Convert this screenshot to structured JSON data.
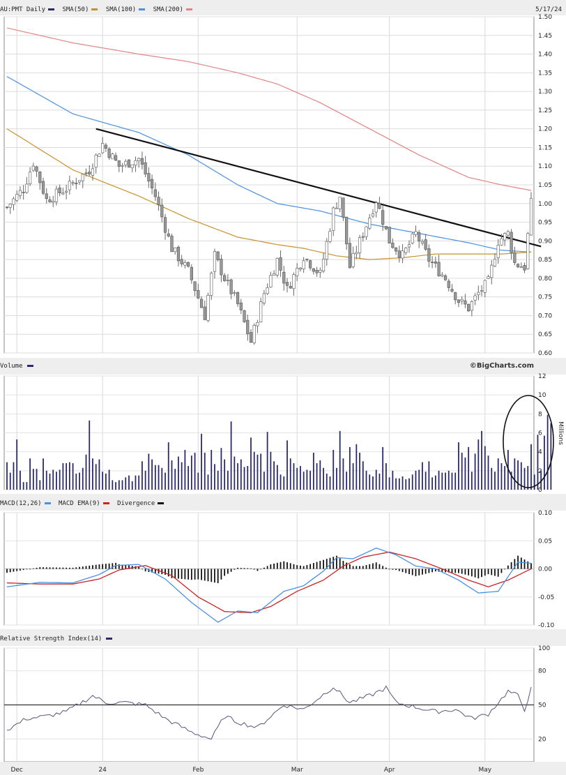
{
  "headers": {
    "price": {
      "symbol": "AU:PMT Daily",
      "date": "5/17/24",
      "items": [
        {
          "label": "SMA(50)",
          "color": "#c8902a"
        },
        {
          "label": "SMA(100)",
          "color": "#4a90e2"
        },
        {
          "label": "SMA(200)",
          "color": "#e08585"
        }
      ],
      "symbol_color": "#2a2a6a"
    },
    "volume": {
      "label": "Volume",
      "color": "#2a2a6a"
    },
    "macd": {
      "items": [
        {
          "label": "MACD(12,26)",
          "color": "#4a90e2"
        },
        {
          "label": "MACD EMA(9)",
          "color": "#cc2222"
        },
        {
          "label": "Divergence",
          "color": "#111111"
        }
      ]
    },
    "rsi": {
      "label": "Relative Strength Index(14)",
      "color": "#2a2a6a"
    }
  },
  "brand": "©BigCharts.com",
  "chart_data": [
    {
      "type": "candlestick",
      "x_labels": [
        "Dec",
        "24",
        "Feb",
        "Mar",
        "Apr",
        "May"
      ],
      "x_label_days": [
        3,
        29,
        58,
        88,
        116,
        145
      ],
      "ylim": [
        0.6,
        1.5
      ],
      "yticks": [
        "0.60",
        "0.65",
        "0.70",
        "0.75",
        "0.80",
        "0.85",
        "0.90",
        "0.95",
        "1.00",
        "1.05",
        "1.10",
        "1.15",
        "1.20",
        "1.25",
        "1.30",
        "1.35",
        "1.40",
        "1.45",
        "1.50"
      ],
      "anchors_close": [
        [
          0,
          0.99
        ],
        [
          5,
          1.04
        ],
        [
          8,
          1.11
        ],
        [
          12,
          1.01
        ],
        [
          18,
          1.04
        ],
        [
          25,
          1.09
        ],
        [
          29,
          1.16
        ],
        [
          34,
          1.1
        ],
        [
          40,
          1.12
        ],
        [
          45,
          1.02
        ],
        [
          50,
          0.88
        ],
        [
          55,
          0.82
        ],
        [
          60,
          0.7
        ],
        [
          63,
          0.86
        ],
        [
          66,
          0.8
        ],
        [
          70,
          0.73
        ],
        [
          74,
          0.63
        ],
        [
          78,
          0.76
        ],
        [
          82,
          0.85
        ],
        [
          85,
          0.77
        ],
        [
          90,
          0.86
        ],
        [
          95,
          0.81
        ],
        [
          99,
          0.98
        ],
        [
          101,
          1.02
        ],
        [
          104,
          0.83
        ],
        [
          108,
          0.92
        ],
        [
          112,
          1.01
        ],
        [
          116,
          0.9
        ],
        [
          120,
          0.86
        ],
        [
          124,
          0.92
        ],
        [
          128,
          0.85
        ],
        [
          133,
          0.8
        ],
        [
          137,
          0.74
        ],
        [
          140,
          0.72
        ],
        [
          143,
          0.76
        ],
        [
          146,
          0.79
        ],
        [
          149,
          0.9
        ],
        [
          152,
          0.92
        ],
        [
          154,
          0.84
        ],
        [
          157,
          0.83
        ],
        [
          159,
          1.0
        ]
      ],
      "sma_50": [
        [
          0,
          1.2
        ],
        [
          20,
          1.09
        ],
        [
          40,
          1.02
        ],
        [
          55,
          0.96
        ],
        [
          70,
          0.91
        ],
        [
          82,
          0.89
        ],
        [
          90,
          0.88
        ],
        [
          100,
          0.86
        ],
        [
          110,
          0.85
        ],
        [
          120,
          0.855
        ],
        [
          130,
          0.865
        ],
        [
          140,
          0.865
        ],
        [
          150,
          0.865
        ],
        [
          159,
          0.87
        ]
      ],
      "sma_100": [
        [
          0,
          1.34
        ],
        [
          20,
          1.24
        ],
        [
          40,
          1.19
        ],
        [
          55,
          1.13
        ],
        [
          70,
          1.05
        ],
        [
          82,
          1.0
        ],
        [
          95,
          0.98
        ],
        [
          110,
          0.945
        ],
        [
          125,
          0.92
        ],
        [
          140,
          0.895
        ],
        [
          150,
          0.875
        ],
        [
          159,
          0.87
        ]
      ],
      "sma_200": [
        [
          0,
          1.47
        ],
        [
          20,
          1.43
        ],
        [
          40,
          1.4
        ],
        [
          55,
          1.38
        ],
        [
          70,
          1.35
        ],
        [
          82,
          1.32
        ],
        [
          95,
          1.27
        ],
        [
          110,
          1.2
        ],
        [
          125,
          1.13
        ],
        [
          140,
          1.07
        ],
        [
          150,
          1.05
        ],
        [
          159,
          1.035
        ]
      ],
      "trendline": [
        [
          27,
          1.2
        ],
        [
          162,
          0.885
        ]
      ]
    },
    {
      "type": "bar",
      "name": "Volume",
      "unit": "Millions",
      "ylim": [
        0,
        12
      ],
      "yticks": [
        "0",
        "2",
        "4",
        "6",
        "8",
        "10",
        "12"
      ],
      "values": [
        2.9,
        1.8,
        2.9,
        5.3,
        2.0,
        0.8,
        0.8,
        3.3,
        2.2,
        2.2,
        1.0,
        3.3,
        2.0,
        1.7,
        2.1,
        1.9,
        2.1,
        2.8,
        2.8,
        2.9,
        2.8,
        1.7,
        1.8,
        2.3,
        3.7,
        7.3,
        3.3,
        2.7,
        3.2,
        1.9,
        1.7,
        2.1,
        1.0,
        0.8,
        1.0,
        1.0,
        1.3,
        1.5,
        0.9,
        1.5,
        1.5,
        3.0,
        2.0,
        3.8,
        3.2,
        2.6,
        2.6,
        2.3,
        1.8,
        5.0,
        3.1,
        2.2,
        3.5,
        2.9,
        4.2,
        2.5,
        3.6,
        3.9,
        1.8,
        5.9,
        3.9,
        1.6,
        4.2,
        2.7,
        2.0,
        4.4,
        3.2,
        2.0,
        7.2,
        3.5,
        2.8,
        3.2,
        2.4,
        2.5,
        5.5,
        4.0,
        3.7,
        3.8,
        1.9,
        6.1,
        4.0,
        3.0,
        2.6,
        1.6,
        1.4,
        5.2,
        3.3,
        2.8,
        2.3,
        2.5,
        1.9,
        2.1,
        2.0,
        3.9,
        2.8,
        3.1,
        2.3,
        1.7,
        1.4,
        4.2,
        2.3,
        6.2,
        3.3,
        1.9,
        4.5,
        2.8,
        4.8,
        3.9,
        3.0,
        2.0,
        1.6,
        1.4,
        2.1,
        1.7,
        4.5,
        2.8,
        1.3,
        2.0,
        1.2,
        1.2,
        1.4,
        1.1,
        1.2,
        1.6,
        2.0,
        2.1,
        2.9,
        1.9,
        3.0,
        1.3,
        1.5,
        2.0,
        1.8,
        1.8,
        2.0,
        1.8,
        1.8,
        5.0,
        3.9,
        3.4,
        4.5,
        1.9,
        3.8,
        5.3,
        6.2,
        4.6,
        3.6,
        2.3,
        1.9,
        3.3,
        2.8,
        2.5,
        4.2,
        1.9,
        3.3,
        3.1,
        2.9,
        2.3,
        2.5,
        4.8,
        1.6,
        5.8,
        2.0,
        5.7,
        7.9,
        7.0
      ],
      "annotation": "circle around the most recent volume bars"
    },
    {
      "type": "line",
      "name": "MACD",
      "ylim": [
        -0.1,
        0.1
      ],
      "yticks": [
        "-0.10",
        "-0.05",
        "0.00",
        "0.05",
        "0.10"
      ],
      "macd_anchors": [
        [
          0,
          -0.032
        ],
        [
          10,
          -0.024
        ],
        [
          20,
          -0.025
        ],
        [
          28,
          -0.01
        ],
        [
          33,
          0.006
        ],
        [
          40,
          0.008
        ],
        [
          48,
          -0.018
        ],
        [
          56,
          -0.06
        ],
        [
          64,
          -0.095
        ],
        [
          70,
          -0.075
        ],
        [
          76,
          -0.078
        ],
        [
          84,
          -0.04
        ],
        [
          90,
          -0.03
        ],
        [
          96,
          -0.004
        ],
        [
          100,
          0.02
        ],
        [
          105,
          0.018
        ],
        [
          112,
          0.037
        ],
        [
          118,
          0.025
        ],
        [
          124,
          0.005
        ],
        [
          130,
          0.0
        ],
        [
          137,
          -0.02
        ],
        [
          143,
          -0.043
        ],
        [
          149,
          -0.04
        ],
        [
          155,
          0.012
        ],
        [
          159,
          0.01
        ]
      ],
      "signal_anchors": [
        [
          0,
          -0.025
        ],
        [
          10,
          -0.027
        ],
        [
          20,
          -0.027
        ],
        [
          28,
          -0.018
        ],
        [
          34,
          -0.002
        ],
        [
          42,
          0.006
        ],
        [
          50,
          -0.012
        ],
        [
          58,
          -0.05
        ],
        [
          66,
          -0.076
        ],
        [
          74,
          -0.078
        ],
        [
          80,
          -0.067
        ],
        [
          88,
          -0.04
        ],
        [
          96,
          -0.02
        ],
        [
          102,
          0.005
        ],
        [
          108,
          0.021
        ],
        [
          116,
          0.03
        ],
        [
          124,
          0.018
        ],
        [
          132,
          0.0
        ],
        [
          140,
          -0.02
        ],
        [
          146,
          -0.032
        ],
        [
          152,
          -0.02
        ],
        [
          159,
          0.0
        ]
      ]
    },
    {
      "type": "line",
      "name": "RSI",
      "ylim": [
        0,
        100
      ],
      "yticks": [
        "20",
        "50",
        "80",
        "100"
      ],
      "reference_line": 50,
      "anchors": [
        [
          0,
          28
        ],
        [
          6,
          38
        ],
        [
          12,
          40
        ],
        [
          18,
          44
        ],
        [
          26,
          58
        ],
        [
          30,
          52
        ],
        [
          36,
          52
        ],
        [
          42,
          50
        ],
        [
          48,
          38
        ],
        [
          56,
          26
        ],
        [
          62,
          20
        ],
        [
          66,
          40
        ],
        [
          70,
          35
        ],
        [
          76,
          30
        ],
        [
          84,
          50
        ],
        [
          90,
          46
        ],
        [
          95,
          57
        ],
        [
          99,
          66
        ],
        [
          104,
          52
        ],
        [
          110,
          58
        ],
        [
          115,
          65
        ],
        [
          118,
          52
        ],
        [
          124,
          48
        ],
        [
          130,
          44
        ],
        [
          136,
          46
        ],
        [
          141,
          38
        ],
        [
          146,
          42
        ],
        [
          152,
          62
        ],
        [
          155,
          58
        ],
        [
          157,
          46
        ],
        [
          159,
          64
        ]
      ]
    }
  ]
}
